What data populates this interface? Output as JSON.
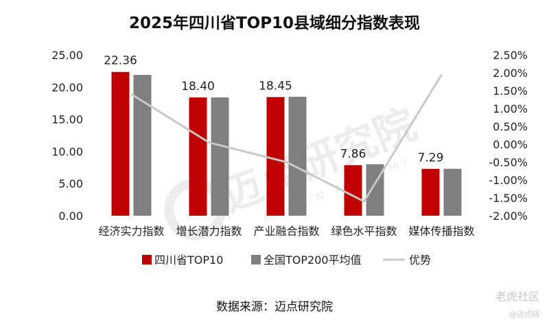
{
  "title": "2025年四川省TOP10县域细分指数表现",
  "source": "数据来源：迈点研究院",
  "watermarks": {
    "center": "迈点研究院",
    "center_sub": "MEADIN ACADEMY",
    "corner": "老虎社区",
    "corner_sub": "@迈点网"
  },
  "colors": {
    "top10": "#c00000",
    "avg": "#7f7f7f",
    "advantage": "#c8c8c8"
  },
  "chart_data": {
    "type": "bar",
    "categories": [
      "经济实力指数",
      "增长潜力指数",
      "产业融合指数",
      "绿色水平指数",
      "媒体传播指数"
    ],
    "series": [
      {
        "name": "四川省TOP10",
        "values": [
          22.36,
          18.4,
          18.45,
          7.86,
          7.29
        ],
        "axis": "left",
        "labeled": true
      },
      {
        "name": "全国TOP200平均值",
        "values": [
          21.9,
          18.4,
          18.5,
          8.0,
          7.3
        ],
        "axis": "left",
        "labeled": false
      },
      {
        "name": "优势",
        "type": "line",
        "values": [
          1.4,
          0.05,
          -0.5,
          -1.6,
          1.95
        ],
        "axis": "right",
        "unit": "%"
      }
    ],
    "data_labels": [
      "22.36",
      "18.40",
      "18.45",
      "7.86",
      "7.29"
    ],
    "left_axis": {
      "ylim": [
        0,
        25
      ],
      "ticks": [
        "0.00",
        "5.00",
        "10.00",
        "15.00",
        "20.00",
        "25.00"
      ]
    },
    "right_axis": {
      "ylim": [
        -2.0,
        2.5
      ],
      "ticks": [
        "-2.00%",
        "-1.50%",
        "-1.00%",
        "-0.50%",
        "0.00%",
        "0.50%",
        "1.00%",
        "1.50%",
        "2.00%",
        "2.50%"
      ]
    },
    "legend": {
      "position": "bottom",
      "items": [
        "四川省TOP10",
        "全国TOP200平均值",
        "优势"
      ]
    },
    "grid": false
  }
}
